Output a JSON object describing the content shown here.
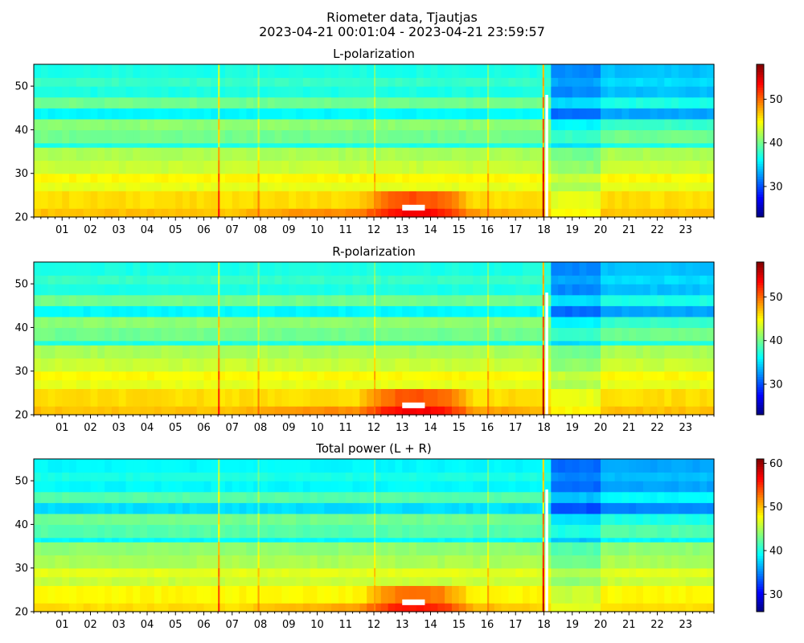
{
  "title": "Riometer data, Tjautjas",
  "subtitle": "2023-04-21 00:01:04 - 2023-04-21 23:59:57",
  "colors": {
    "background": "#ffffff",
    "colormap": [
      "#00007f",
      "#0000ff",
      "#007fff",
      "#00ffff",
      "#7fff7f",
      "#ffff00",
      "#ff7f00",
      "#ff0000",
      "#7f0000"
    ],
    "saturated": "#ffffff"
  },
  "chart_data": [
    {
      "type": "heatmap",
      "title": "L-polarization",
      "x_tick_labels": [
        "01",
        "02",
        "03",
        "04",
        "05",
        "06",
        "07",
        "08",
        "09",
        "10",
        "11",
        "12",
        "13",
        "14",
        "15",
        "16",
        "17",
        "18",
        "19",
        "20",
        "21",
        "22",
        "23"
      ],
      "x_range_hours": [
        0,
        24
      ],
      "ylim": [
        20,
        55
      ],
      "y_ticks": [
        20,
        30,
        40,
        50
      ],
      "colorbar": {
        "range": [
          23,
          58
        ],
        "ticks": [
          30,
          40,
          50
        ]
      },
      "bands": [
        {
          "y": [
            20,
            22
          ],
          "value": 47
        },
        {
          "y": [
            22,
            26
          ],
          "value": 46
        },
        {
          "y": [
            26,
            28
          ],
          "value": 44
        },
        {
          "y": [
            28,
            30
          ],
          "value": 45
        },
        {
          "y": [
            30,
            33
          ],
          "value": 43
        },
        {
          "y": [
            33,
            36
          ],
          "value": 42
        },
        {
          "y": [
            36,
            37
          ],
          "value": 37
        },
        {
          "y": [
            37,
            40
          ],
          "value": 40
        },
        {
          "y": [
            40,
            42.5
          ],
          "value": 41
        },
        {
          "y": [
            42.5,
            45
          ],
          "value": 36
        },
        {
          "y": [
            45,
            47.5
          ],
          "value": 40
        },
        {
          "y": [
            47.5,
            50
          ],
          "value": 37
        },
        {
          "y": [
            50,
            52
          ],
          "value": 38
        },
        {
          "y": [
            52,
            55
          ],
          "value": 37
        }
      ],
      "features": [
        {
          "kind": "enhancement",
          "hours": [
            11.5,
            15.5
          ],
          "y": [
            20,
            26
          ],
          "delta": 5
        },
        {
          "kind": "enhancement",
          "hours": [
            7.0,
            18.0
          ],
          "y": [
            20,
            23
          ],
          "delta": 2
        },
        {
          "kind": "depression",
          "hours": [
            18.2,
            24.0
          ],
          "y": [
            40,
            55
          ],
          "delta": -3
        },
        {
          "kind": "depression",
          "hours": [
            18.2,
            20.0
          ],
          "y": [
            20,
            55
          ],
          "delta": -2
        },
        {
          "kind": "spike",
          "hour": 6.5,
          "delta": 6
        },
        {
          "kind": "spike",
          "hour": 7.9,
          "delta": 3
        },
        {
          "kind": "spike",
          "hour": 12.0,
          "delta": 3
        },
        {
          "kind": "spike",
          "hour": 16.0,
          "delta": 3
        },
        {
          "kind": "spike",
          "hour": 17.95,
          "delta": 10
        },
        {
          "kind": "saturated",
          "hours": [
            13.0,
            13.8
          ],
          "y": [
            21.5,
            22.8
          ]
        },
        {
          "kind": "saturated",
          "hours": [
            18.05,
            18.15
          ],
          "y": [
            20,
            48
          ]
        }
      ]
    },
    {
      "type": "heatmap",
      "title": "R-polarization",
      "x_tick_labels": [
        "01",
        "02",
        "03",
        "04",
        "05",
        "06",
        "07",
        "08",
        "09",
        "10",
        "11",
        "12",
        "13",
        "14",
        "15",
        "16",
        "17",
        "18",
        "19",
        "20",
        "21",
        "22",
        "23"
      ],
      "x_range_hours": [
        0,
        24
      ],
      "ylim": [
        20,
        55
      ],
      "y_ticks": [
        20,
        30,
        40,
        50
      ],
      "colorbar": {
        "range": [
          23,
          58
        ],
        "ticks": [
          30,
          40,
          50
        ]
      },
      "bands": [
        {
          "y": [
            20,
            22
          ],
          "value": 47
        },
        {
          "y": [
            22,
            26
          ],
          "value": 46
        },
        {
          "y": [
            26,
            28
          ],
          "value": 44
        },
        {
          "y": [
            28,
            30
          ],
          "value": 45
        },
        {
          "y": [
            30,
            33
          ],
          "value": 43
        },
        {
          "y": [
            33,
            36
          ],
          "value": 42
        },
        {
          "y": [
            36,
            37
          ],
          "value": 37
        },
        {
          "y": [
            37,
            40
          ],
          "value": 40
        },
        {
          "y": [
            40,
            42.5
          ],
          "value": 41
        },
        {
          "y": [
            42.5,
            45
          ],
          "value": 36
        },
        {
          "y": [
            45,
            47.5
          ],
          "value": 40
        },
        {
          "y": [
            47.5,
            50
          ],
          "value": 37
        },
        {
          "y": [
            50,
            52
          ],
          "value": 38
        },
        {
          "y": [
            52,
            55
          ],
          "value": 37
        }
      ],
      "features": [
        {
          "kind": "enhancement",
          "hours": [
            11.5,
            15.5
          ],
          "y": [
            20,
            26
          ],
          "delta": 5
        },
        {
          "kind": "enhancement",
          "hours": [
            7.0,
            18.0
          ],
          "y": [
            20,
            23
          ],
          "delta": 2
        },
        {
          "kind": "depression",
          "hours": [
            18.2,
            24.0
          ],
          "y": [
            40,
            55
          ],
          "delta": -3
        },
        {
          "kind": "depression",
          "hours": [
            18.2,
            20.0
          ],
          "y": [
            20,
            55
          ],
          "delta": -2
        },
        {
          "kind": "spike",
          "hour": 6.5,
          "delta": 6
        },
        {
          "kind": "spike",
          "hour": 7.9,
          "delta": 3
        },
        {
          "kind": "spike",
          "hour": 12.0,
          "delta": 3
        },
        {
          "kind": "spike",
          "hour": 16.0,
          "delta": 3
        },
        {
          "kind": "spike",
          "hour": 17.95,
          "delta": 10
        },
        {
          "kind": "saturated",
          "hours": [
            13.0,
            13.8
          ],
          "y": [
            21.5,
            22.8
          ]
        },
        {
          "kind": "saturated",
          "hours": [
            18.05,
            18.15
          ],
          "y": [
            20,
            48
          ]
        }
      ]
    },
    {
      "type": "heatmap",
      "title": "Total power (L + R)",
      "x_tick_labels": [
        "01",
        "02",
        "03",
        "04",
        "05",
        "06",
        "07",
        "08",
        "09",
        "10",
        "11",
        "12",
        "13",
        "14",
        "15",
        "16",
        "17",
        "18",
        "19",
        "20",
        "21",
        "22",
        "23"
      ],
      "x_range_hours": [
        0,
        24
      ],
      "ylim": [
        20,
        55
      ],
      "y_ticks": [
        20,
        30,
        40,
        50
      ],
      "colorbar": {
        "range": [
          26,
          61
        ],
        "ticks": [
          30,
          40,
          50,
          60
        ]
      },
      "bands": [
        {
          "y": [
            20,
            22
          ],
          "value": 49
        },
        {
          "y": [
            22,
            26
          ],
          "value": 48
        },
        {
          "y": [
            26,
            28
          ],
          "value": 46
        },
        {
          "y": [
            28,
            30
          ],
          "value": 47
        },
        {
          "y": [
            30,
            33
          ],
          "value": 45
        },
        {
          "y": [
            33,
            36
          ],
          "value": 44
        },
        {
          "y": [
            36,
            37
          ],
          "value": 39
        },
        {
          "y": [
            37,
            40
          ],
          "value": 42
        },
        {
          "y": [
            40,
            42.5
          ],
          "value": 43
        },
        {
          "y": [
            42.5,
            45
          ],
          "value": 38
        },
        {
          "y": [
            45,
            47.5
          ],
          "value": 42
        },
        {
          "y": [
            47.5,
            50
          ],
          "value": 39
        },
        {
          "y": [
            50,
            52
          ],
          "value": 40
        },
        {
          "y": [
            52,
            55
          ],
          "value": 39
        }
      ],
      "features": [
        {
          "kind": "enhancement",
          "hours": [
            11.5,
            15.5
          ],
          "y": [
            20,
            26
          ],
          "delta": 5
        },
        {
          "kind": "enhancement",
          "hours": [
            7.0,
            18.0
          ],
          "y": [
            20,
            23
          ],
          "delta": 2
        },
        {
          "kind": "depression",
          "hours": [
            18.2,
            24.0
          ],
          "y": [
            40,
            55
          ],
          "delta": -3
        },
        {
          "kind": "depression",
          "hours": [
            18.2,
            20.0
          ],
          "y": [
            20,
            55
          ],
          "delta": -2
        },
        {
          "kind": "spike",
          "hour": 6.5,
          "delta": 6
        },
        {
          "kind": "spike",
          "hour": 7.9,
          "delta": 3
        },
        {
          "kind": "spike",
          "hour": 12.0,
          "delta": 3
        },
        {
          "kind": "spike",
          "hour": 16.0,
          "delta": 3
        },
        {
          "kind": "spike",
          "hour": 17.95,
          "delta": 10
        },
        {
          "kind": "saturated",
          "hours": [
            13.0,
            13.8
          ],
          "y": [
            21.5,
            22.8
          ]
        },
        {
          "kind": "saturated",
          "hours": [
            18.05,
            18.15
          ],
          "y": [
            20,
            48
          ]
        }
      ]
    }
  ]
}
